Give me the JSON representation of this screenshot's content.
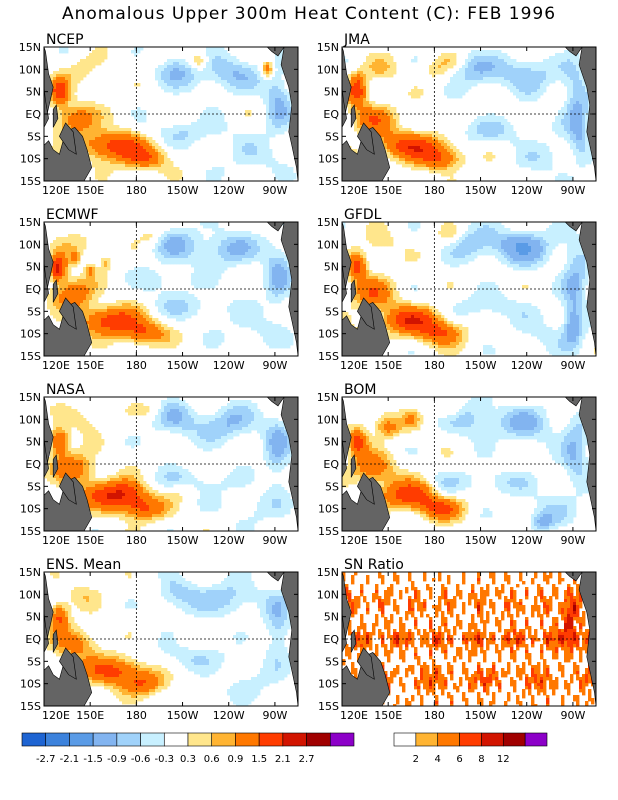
{
  "title": "Anomalous Upper 300m Heat Content (C): FEB 1996",
  "lat_labels": [
    "15N",
    "10N",
    "5N",
    "EQ",
    "5S",
    "10S",
    "15S"
  ],
  "lon_labels": [
    "120E",
    "150E",
    "180",
    "150W",
    "120W",
    "90W"
  ],
  "panels": [
    {
      "name": "NCEP"
    },
    {
      "name": "JMA"
    },
    {
      "name": "ECMWF"
    },
    {
      "name": "GFDL"
    },
    {
      "name": "NASA"
    },
    {
      "name": "BOM"
    },
    {
      "name": "ENS. Mean"
    },
    {
      "name": "SN Ratio"
    }
  ],
  "colorbars": {
    "anomaly": {
      "colors": [
        "#1e64d2",
        "#3c82dc",
        "#5a9be6",
        "#82b4f0",
        "#a0d2fa",
        "#c8f0ff",
        "#ffffff",
        "#ffe68c",
        "#ffb432",
        "#ff7800",
        "#ff3c00",
        "#d21400",
        "#a00000",
        "#8c00c8"
      ],
      "labels": [
        "-2.7",
        "-2.1",
        "-1.5",
        "-0.9",
        "-0.6",
        "-0.3",
        "0.3",
        "0.6",
        "0.9",
        "1.5",
        "2.1",
        "2.7"
      ]
    },
    "sn_ratio": {
      "colors": [
        "#ffffff",
        "#ffb432",
        "#ff7800",
        "#ff3c00",
        "#d21400",
        "#a00000",
        "#8c00c8"
      ],
      "labels": [
        "2",
        "4",
        "6",
        "8",
        "12"
      ]
    }
  }
}
